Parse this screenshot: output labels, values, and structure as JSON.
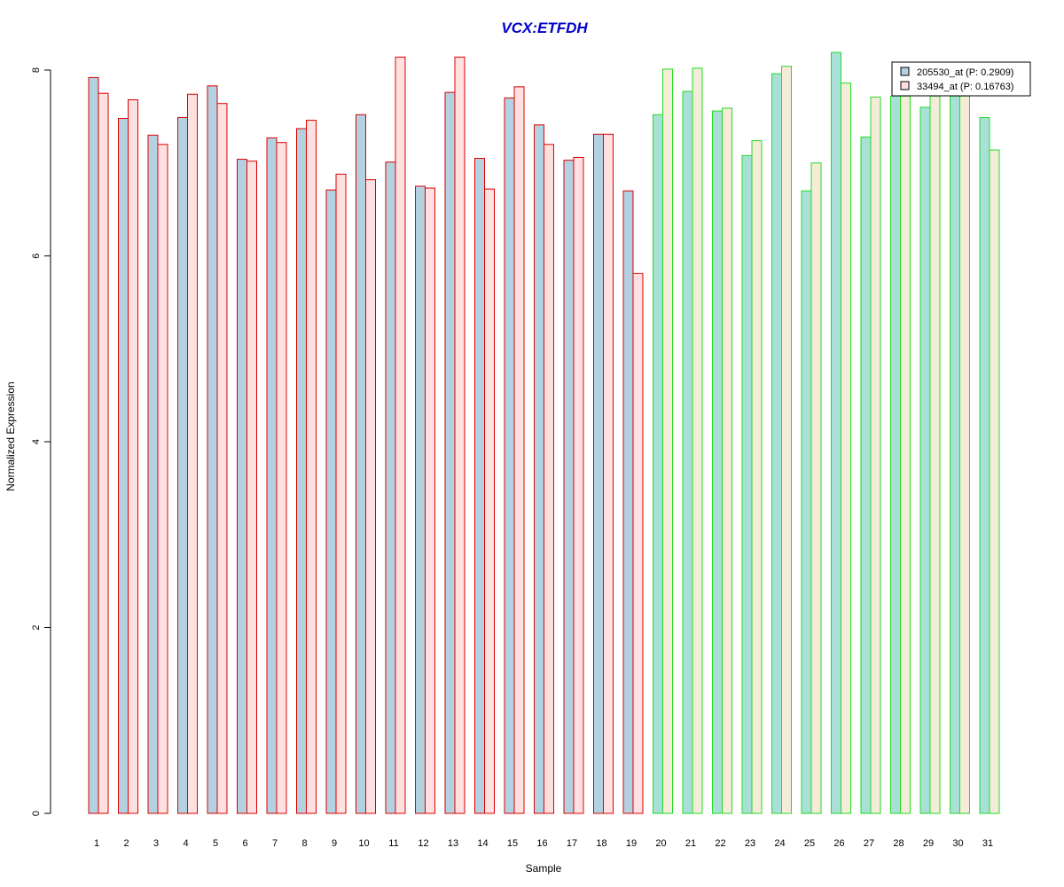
{
  "chart_data": {
    "type": "bar",
    "title": "VCX:ETFDH",
    "xlabel": "Sample",
    "ylabel": "Normalized Expression",
    "ylim": [
      0,
      8
    ],
    "yticks": [
      0,
      2,
      4,
      6,
      8
    ],
    "grid": false,
    "legend_position": "top-right",
    "categories": [
      "1",
      "2",
      "3",
      "4",
      "5",
      "6",
      "7",
      "8",
      "9",
      "10",
      "11",
      "12",
      "13",
      "14",
      "15",
      "16",
      "17",
      "18",
      "19",
      "20",
      "21",
      "22",
      "23",
      "24",
      "25",
      "26",
      "27",
      "28",
      "29",
      "30",
      "31"
    ],
    "group_border_colors": [
      "#dd0000",
      "#dd0000",
      "#dd0000",
      "#dd0000",
      "#dd0000",
      "#dd0000",
      "#dd0000",
      "#dd0000",
      "#dd0000",
      "#dd0000",
      "#dd0000",
      "#dd0000",
      "#dd0000",
      "#dd0000",
      "#dd0000",
      "#dd0000",
      "#dd0000",
      "#dd0000",
      "#dd0000",
      "#22dd22",
      "#22dd22",
      "#22dd22",
      "#22dd22",
      "#22dd22",
      "#22dd22",
      "#22dd22",
      "#22dd22",
      "#22dd22",
      "#22dd22",
      "#22dd22",
      "#22dd22"
    ],
    "series": [
      {
        "name": "205530_at (P: 0.2909)",
        "fill_group1": "#b3d1e0",
        "fill_group2": "#a8e0d8",
        "values": [
          7.92,
          7.48,
          7.3,
          7.49,
          7.83,
          7.04,
          7.27,
          7.37,
          6.71,
          7.52,
          7.01,
          6.75,
          7.76,
          7.05,
          7.7,
          7.41,
          7.03,
          7.31,
          6.7,
          7.52,
          7.77,
          7.56,
          7.08,
          7.96,
          6.7,
          8.19,
          7.28,
          7.72,
          7.6,
          7.72,
          7.49
        ]
      },
      {
        "name": "33494_at (P: 0.16763)",
        "fill_group1": "#ffe0e0",
        "fill_group2": "#f4ecd8",
        "values": [
          7.75,
          7.68,
          7.2,
          7.74,
          7.64,
          7.02,
          7.22,
          7.46,
          6.88,
          6.82,
          8.14,
          6.73,
          8.14,
          6.72,
          7.82,
          7.2,
          7.06,
          7.31,
          5.81,
          8.01,
          8.02,
          7.59,
          7.24,
          8.04,
          7.0,
          7.86,
          7.71,
          7.72,
          7.72,
          7.72,
          7.14
        ]
      }
    ]
  }
}
